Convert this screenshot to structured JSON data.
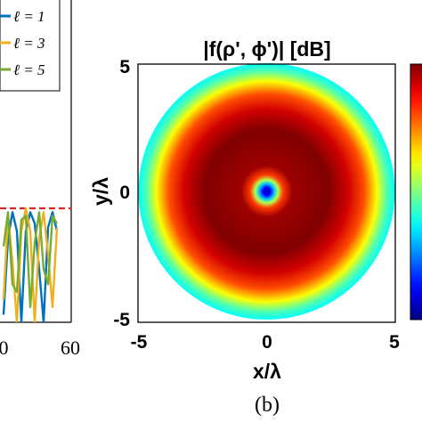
{
  "chart_data": [
    {
      "type": "line",
      "panel": "left (cropped)",
      "xlim": [
        null,
        60
      ],
      "x_tick_labels": [
        "0",
        "60"
      ],
      "legend": {
        "placement": "top-right",
        "entries": [
          {
            "label": "ℓ = 1",
            "color": "#0072BD"
          },
          {
            "label": "ℓ = 3",
            "color": "#EDB120"
          },
          {
            "label": "ℓ = 5",
            "color": "#77AC30"
          }
        ]
      },
      "reference_line": {
        "style": "dashed",
        "color": "#D62728"
      },
      "series": [
        {
          "name": "ℓ = 1",
          "color": "#0072BD",
          "x": [
            0,
            5,
            10,
            15,
            20,
            25,
            30,
            35,
            40,
            45,
            50,
            55,
            60
          ],
          "y": [
            -28,
            -8,
            -1,
            -6,
            -30,
            -6,
            -1,
            -4,
            -16,
            -30,
            -5,
            -1,
            -6
          ]
        },
        {
          "name": "ℓ = 3",
          "color": "#EDB120",
          "x": [
            0,
            5,
            10,
            15,
            20,
            25,
            30,
            35,
            40,
            45,
            50,
            55,
            60
          ],
          "y": [
            -24,
            -2,
            -14,
            -30,
            -6,
            0,
            -6,
            -30,
            -8,
            -1,
            -12,
            -26,
            -5
          ]
        },
        {
          "name": "ℓ = 5",
          "color": "#77AC30",
          "x": [
            0,
            5,
            10,
            15,
            20,
            25,
            30,
            35,
            40,
            45,
            50,
            55,
            60
          ],
          "y": [
            -10,
            -1,
            -20,
            -22,
            -3,
            -2,
            -26,
            -9,
            -1,
            -16,
            -20,
            -2,
            -4
          ]
        }
      ]
    },
    {
      "type": "heatmap",
      "panel": "b",
      "title": "|f(ρ', ϕ')| [dB]",
      "xlabel": "x/λ",
      "ylabel": "y/λ",
      "xlim": [
        -5,
        5
      ],
      "ylim": [
        -5,
        5
      ],
      "x_ticks": [
        "-5",
        "0",
        "5"
      ],
      "y_ticks": [
        "5",
        "0",
        "-5"
      ],
      "colormap": "jet",
      "aperture_radius": 5,
      "radial_profile": [
        {
          "r": 0.0,
          "level": 0.05
        },
        {
          "r": 0.15,
          "level": 0.12
        },
        {
          "r": 0.3,
          "level": 0.32
        },
        {
          "r": 0.45,
          "level": 0.55
        },
        {
          "r": 0.65,
          "level": 0.82
        },
        {
          "r": 1.0,
          "level": 0.97
        },
        {
          "r": 2.4,
          "level": 1.0
        },
        {
          "r": 3.2,
          "level": 0.92
        },
        {
          "r": 3.8,
          "level": 0.8
        },
        {
          "r": 4.3,
          "level": 0.62
        },
        {
          "r": 4.7,
          "level": 0.45
        },
        {
          "r": 5.0,
          "level": 0.38
        }
      ]
    }
  ],
  "caption": "(b)"
}
